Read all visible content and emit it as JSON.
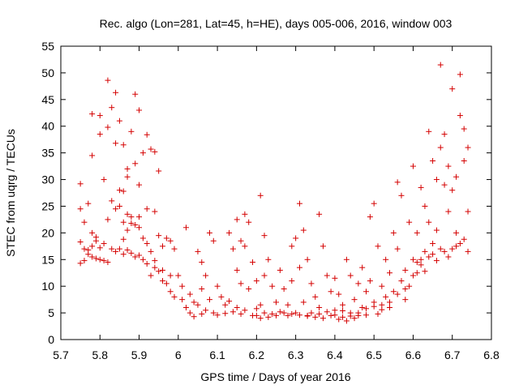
{
  "chart_data": {
    "type": "scatter",
    "title": "Rec. algo (Lon=281, Lat=45, h=HE), days 005-006, 2016, window 003",
    "xlabel": "GPS time / Days of year 2016",
    "ylabel": "STEC from uqrg / TECUs",
    "xlim": [
      5.7,
      6.8
    ],
    "ylim": [
      0,
      55
    ],
    "xticks": [
      "5.7",
      "5.8",
      "5.9",
      "6",
      "6.1",
      "6.2",
      "6.3",
      "6.4",
      "6.5",
      "6.6",
      "6.7",
      "6.8"
    ],
    "yticks": [
      "0",
      "5",
      "10",
      "15",
      "20",
      "25",
      "30",
      "35",
      "40",
      "45",
      "50",
      "55"
    ],
    "marker": "plus",
    "color": "#d40000",
    "grid": false,
    "series": [
      {
        "points": [
          [
            5.75,
            29.2
          ],
          [
            5.77,
            25.5
          ],
          [
            5.78,
            34.5
          ],
          [
            5.78,
            42.3
          ],
          [
            5.8,
            38.5
          ],
          [
            5.8,
            42.0
          ],
          [
            5.81,
            30.0
          ],
          [
            5.82,
            48.6
          ],
          [
            5.82,
            39.8
          ],
          [
            5.83,
            43.5
          ],
          [
            5.84,
            46.3
          ],
          [
            5.84,
            36.8
          ],
          [
            5.85,
            41.0
          ],
          [
            5.86,
            36.5
          ],
          [
            5.87,
            32.0
          ],
          [
            5.88,
            39.0
          ],
          [
            5.89,
            46.0
          ],
          [
            5.9,
            43.0
          ],
          [
            5.91,
            35.0
          ],
          [
            5.92,
            38.4
          ],
          [
            5.93,
            35.7
          ],
          [
            5.94,
            35.2
          ],
          [
            5.95,
            31.6
          ],
          [
            5.85,
            28.0
          ],
          [
            5.86,
            27.8
          ],
          [
            5.87,
            30.5
          ],
          [
            5.89,
            33.0
          ],
          [
            5.9,
            29.0
          ],
          [
            5.75,
            24.5
          ],
          [
            5.76,
            22.0
          ],
          [
            5.78,
            20.0
          ],
          [
            5.79,
            19.2
          ],
          [
            5.8,
            17.2
          ],
          [
            5.81,
            18.0
          ],
          [
            5.82,
            22.5
          ],
          [
            5.83,
            26.0
          ],
          [
            5.84,
            24.5
          ],
          [
            5.85,
            25.0
          ],
          [
            5.86,
            22.0
          ],
          [
            5.87,
            23.5
          ],
          [
            5.88,
            23.0
          ],
          [
            5.89,
            21.5
          ],
          [
            5.9,
            21.0
          ],
          [
            5.91,
            19.0
          ],
          [
            5.92,
            18.0
          ],
          [
            5.93,
            16.5
          ],
          [
            5.94,
            24.0
          ],
          [
            5.95,
            19.5
          ],
          [
            5.96,
            17.5
          ],
          [
            5.97,
            19.0
          ],
          [
            5.98,
            18.5
          ],
          [
            5.99,
            17.0
          ],
          [
            5.75,
            18.3
          ],
          [
            5.76,
            17.0
          ],
          [
            5.77,
            16.0
          ],
          [
            5.78,
            15.5
          ],
          [
            5.79,
            15.2
          ],
          [
            5.8,
            15.0
          ],
          [
            5.81,
            14.8
          ],
          [
            5.82,
            14.5
          ],
          [
            5.83,
            17.0
          ],
          [
            5.84,
            16.5
          ],
          [
            5.85,
            17.0
          ],
          [
            5.86,
            16.0
          ],
          [
            5.87,
            16.8
          ],
          [
            5.88,
            16.2
          ],
          [
            5.89,
            15.5
          ],
          [
            5.9,
            15.8
          ],
          [
            5.91,
            15.0
          ],
          [
            5.92,
            14.2
          ],
          [
            5.93,
            12.0
          ],
          [
            5.94,
            13.5
          ],
          [
            5.95,
            12.8
          ],
          [
            5.96,
            11.0
          ],
          [
            5.97,
            10.5
          ],
          [
            5.98,
            9.0
          ],
          [
            5.99,
            8.0
          ],
          [
            5.75,
            14.3
          ],
          [
            5.76,
            14.8
          ],
          [
            5.77,
            16.8
          ],
          [
            5.78,
            17.5
          ],
          [
            5.79,
            18.5
          ],
          [
            5.86,
            18.8
          ],
          [
            5.87,
            20.5
          ],
          [
            5.88,
            21.8
          ],
          [
            5.9,
            23.0
          ],
          [
            5.92,
            24.5
          ],
          [
            5.94,
            14.8
          ],
          [
            5.96,
            13.0
          ],
          [
            5.98,
            12.0
          ],
          [
            6.0,
            12.0
          ],
          [
            6.01,
            10.0
          ],
          [
            6.01,
            7.5
          ],
          [
            6.02,
            6.0
          ],
          [
            6.02,
            21.0
          ],
          [
            6.03,
            8.5
          ],
          [
            6.03,
            5.0
          ],
          [
            6.04,
            7.0
          ],
          [
            6.04,
            4.3
          ],
          [
            6.05,
            16.5
          ],
          [
            6.05,
            6.5
          ],
          [
            6.06,
            14.5
          ],
          [
            6.06,
            9.5
          ],
          [
            6.06,
            4.8
          ],
          [
            6.07,
            5.5
          ],
          [
            6.07,
            12.0
          ],
          [
            6.08,
            20.0
          ],
          [
            6.08,
            7.5
          ],
          [
            6.09,
            18.5
          ],
          [
            6.09,
            5.0
          ],
          [
            6.1,
            10.0
          ],
          [
            6.1,
            4.6
          ],
          [
            6.11,
            8.0
          ],
          [
            6.12,
            6.5
          ],
          [
            6.12,
            4.9
          ],
          [
            6.13,
            7.2
          ],
          [
            6.14,
            5.2
          ],
          [
            6.15,
            13.0
          ],
          [
            6.15,
            6.0
          ],
          [
            6.16,
            10.5
          ],
          [
            6.16,
            4.8
          ],
          [
            6.17,
            17.5
          ],
          [
            6.17,
            5.5
          ],
          [
            6.18,
            9.5
          ],
          [
            6.19,
            4.5
          ],
          [
            6.13,
            20.0
          ],
          [
            6.14,
            17.0
          ],
          [
            6.15,
            22.5
          ],
          [
            6.16,
            18.5
          ],
          [
            6.17,
            23.5
          ],
          [
            6.18,
            22.0
          ],
          [
            6.19,
            14.5
          ],
          [
            6.2,
            11.0
          ],
          [
            6.2,
            4.5
          ],
          [
            6.21,
            27.0
          ],
          [
            6.21,
            6.5
          ],
          [
            6.22,
            19.5
          ],
          [
            6.22,
            12.0
          ],
          [
            6.23,
            15.0
          ],
          [
            6.23,
            4.2
          ],
          [
            6.24,
            10.0
          ],
          [
            6.25,
            7.0
          ],
          [
            6.25,
            4.5
          ],
          [
            6.26,
            13.0
          ],
          [
            6.26,
            5.2
          ],
          [
            6.27,
            9.5
          ],
          [
            6.28,
            6.5
          ],
          [
            6.28,
            4.5
          ],
          [
            6.29,
            17.5
          ],
          [
            6.29,
            11.0
          ],
          [
            6.3,
            19.0
          ],
          [
            6.3,
            5.0
          ],
          [
            6.31,
            25.5
          ],
          [
            6.31,
            13.5
          ],
          [
            6.32,
            20.5
          ],
          [
            6.32,
            7.0
          ],
          [
            6.33,
            15.0
          ],
          [
            6.33,
            4.5
          ],
          [
            6.34,
            10.5
          ],
          [
            6.35,
            8.0
          ],
          [
            6.35,
            4.2
          ],
          [
            6.36,
            23.5
          ],
          [
            6.36,
            6.0
          ],
          [
            6.37,
            17.5
          ],
          [
            6.37,
            4.0
          ],
          [
            6.38,
            12.0
          ],
          [
            6.39,
            9.0
          ],
          [
            6.39,
            4.5
          ],
          [
            6.4,
            11.5
          ],
          [
            6.4,
            5.5
          ],
          [
            6.41,
            8.5
          ],
          [
            6.41,
            3.8
          ],
          [
            6.42,
            6.5
          ],
          [
            6.42,
            4.2
          ],
          [
            6.43,
            15.0
          ],
          [
            6.43,
            3.5
          ],
          [
            6.44,
            12.0
          ],
          [
            6.44,
            5.0
          ],
          [
            6.45,
            7.5
          ],
          [
            6.45,
            4.0
          ],
          [
            6.46,
            10.5
          ],
          [
            6.46,
            4.5
          ],
          [
            6.47,
            13.5
          ],
          [
            6.47,
            6.0
          ],
          [
            6.48,
            9.0
          ],
          [
            6.48,
            4.6
          ],
          [
            6.49,
            23.0
          ],
          [
            6.49,
            11.0
          ],
          [
            6.5,
            7.0
          ],
          [
            6.5,
            25.5
          ],
          [
            6.51,
            4.8
          ],
          [
            6.51,
            17.5
          ],
          [
            6.52,
            6.5
          ],
          [
            6.52,
            10.0
          ],
          [
            6.53,
            15.0
          ],
          [
            6.53,
            8.0
          ],
          [
            6.54,
            12.5
          ],
          [
            6.54,
            6.0
          ],
          [
            6.55,
            20.0
          ],
          [
            6.55,
            9.0
          ],
          [
            6.56,
            29.5
          ],
          [
            6.56,
            17.0
          ],
          [
            6.57,
            11.0
          ],
          [
            6.57,
            27.0
          ],
          [
            6.58,
            13.0
          ],
          [
            6.58,
            7.5
          ],
          [
            6.59,
            22.0
          ],
          [
            6.59,
            10.0
          ],
          [
            6.6,
            32.5
          ],
          [
            6.6,
            12.0
          ],
          [
            6.61,
            20.0
          ],
          [
            6.61,
            14.5
          ],
          [
            6.62,
            28.5
          ],
          [
            6.62,
            15.0
          ],
          [
            6.63,
            25.0
          ],
          [
            6.63,
            16.5
          ],
          [
            6.64,
            39.0
          ],
          [
            6.64,
            22.0
          ],
          [
            6.65,
            33.5
          ],
          [
            6.65,
            18.0
          ],
          [
            6.66,
            30.0
          ],
          [
            6.66,
            20.5
          ],
          [
            6.67,
            51.5
          ],
          [
            6.67,
            36.0
          ],
          [
            6.68,
            38.5
          ],
          [
            6.68,
            29.0
          ],
          [
            6.69,
            32.5
          ],
          [
            6.69,
            24.0
          ],
          [
            6.7,
            47.0
          ],
          [
            6.7,
            28.0
          ],
          [
            6.71,
            30.5
          ],
          [
            6.71,
            20.0
          ],
          [
            6.72,
            49.7
          ],
          [
            6.72,
            42.0
          ],
          [
            6.73,
            39.5
          ],
          [
            6.73,
            33.5
          ],
          [
            6.74,
            36.0
          ],
          [
            6.74,
            24.0
          ],
          [
            6.6,
            15.0
          ],
          [
            6.61,
            12.5
          ],
          [
            6.62,
            14.0
          ],
          [
            6.63,
            12.8
          ],
          [
            6.64,
            15.5
          ],
          [
            6.65,
            16.0
          ],
          [
            6.66,
            14.8
          ],
          [
            6.67,
            17.0
          ],
          [
            6.68,
            16.5
          ],
          [
            6.69,
            15.5
          ],
          [
            6.7,
            17.0
          ],
          [
            6.71,
            17.5
          ],
          [
            6.72,
            18.0
          ],
          [
            6.73,
            18.8
          ],
          [
            6.74,
            16.5
          ],
          [
            6.2,
            5.8
          ],
          [
            6.21,
            4.0
          ],
          [
            6.22,
            5.0
          ],
          [
            6.24,
            4.8
          ],
          [
            6.27,
            5.0
          ],
          [
            6.29,
            4.8
          ],
          [
            6.31,
            4.6
          ],
          [
            6.33,
            4.4
          ],
          [
            6.34,
            5.0
          ],
          [
            6.36,
            4.8
          ],
          [
            6.38,
            5.2
          ],
          [
            6.4,
            4.6
          ],
          [
            6.42,
            5.4
          ],
          [
            6.44,
            4.4
          ],
          [
            6.46,
            5.0
          ],
          [
            6.48,
            5.8
          ],
          [
            6.5,
            6.2
          ],
          [
            6.52,
            5.6
          ],
          [
            6.54,
            7.0
          ],
          [
            6.56,
            8.5
          ],
          [
            6.58,
            9.5
          ]
        ]
      }
    ]
  }
}
